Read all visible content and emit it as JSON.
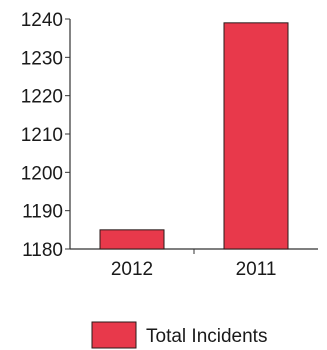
{
  "chart_data": {
    "type": "bar",
    "title": "",
    "xlabel": "",
    "ylabel": "",
    "categories": [
      "2012",
      "2011"
    ],
    "series": [
      {
        "name": "Total Incidents",
        "values": [
          1185,
          1239
        ]
      }
    ],
    "ylim": [
      1180,
      1240
    ],
    "yticks": [
      1180,
      1190,
      1200,
      1210,
      1220,
      1230,
      1240
    ],
    "ytick_labels": [
      "1180",
      "1190",
      "1200",
      "1210",
      "1220",
      "1230",
      "1240"
    ],
    "grid": false,
    "legend_position": "bottom-right",
    "colors": {
      "bar_fill": "#e8394b",
      "bar_stroke": "#2a1a1a",
      "axis": "#333333"
    }
  }
}
